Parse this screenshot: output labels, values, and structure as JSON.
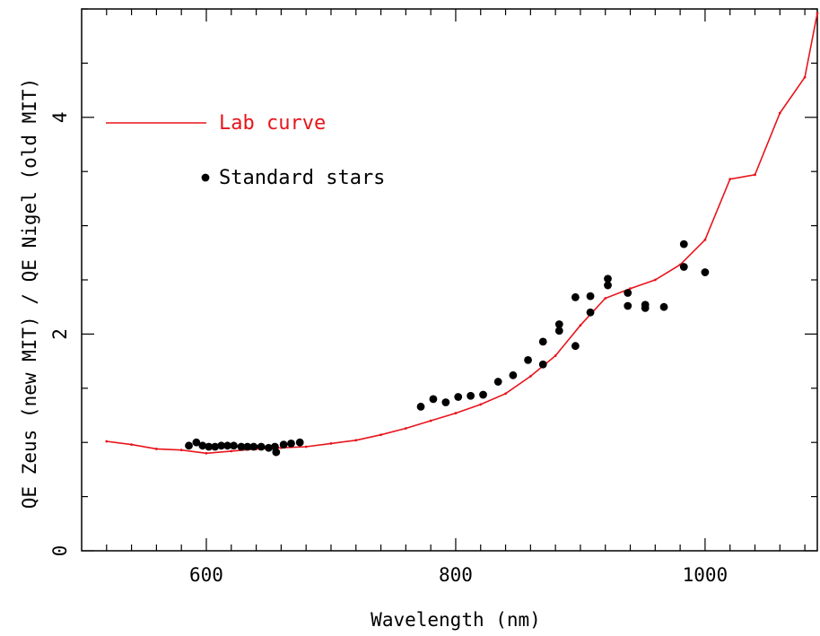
{
  "chart_data": {
    "type": "scatter",
    "title": "",
    "xlabel": "Wavelength (nm)",
    "ylabel": "QE Zeus (new MIT) / QE Nigel (old MIT)",
    "xlim": [
      500,
      1090
    ],
    "ylim": [
      0,
      5
    ],
    "x_ticks": [
      600,
      800,
      1000
    ],
    "y_ticks": [
      0,
      2,
      4
    ],
    "grid": false,
    "legend_position": "top-left",
    "colors": {
      "lab_curve": "#e8141b",
      "stars": "#000000",
      "axes": "#000000"
    },
    "series": [
      {
        "name": "Lab curve",
        "kind": "line",
        "x": [
          520,
          540,
          560,
          580,
          600,
          620,
          640,
          660,
          680,
          700,
          720,
          740,
          760,
          780,
          800,
          820,
          840,
          860,
          880,
          900,
          920,
          940,
          960,
          980,
          1000,
          1020,
          1040,
          1060,
          1080,
          1090
        ],
        "y": [
          1.01,
          0.98,
          0.94,
          0.93,
          0.9,
          0.92,
          0.94,
          0.95,
          0.96,
          0.99,
          1.02,
          1.07,
          1.13,
          1.2,
          1.27,
          1.35,
          1.45,
          1.61,
          1.8,
          2.08,
          2.33,
          2.42,
          2.5,
          2.64,
          2.87,
          3.43,
          3.47,
          4.04,
          4.37,
          4.96
        ]
      },
      {
        "name": "Standard stars",
        "kind": "points",
        "x": [
          586,
          592,
          597,
          602,
          607,
          612,
          617,
          622,
          628,
          633,
          638,
          644,
          650,
          655,
          656,
          662,
          668,
          675,
          772,
          782,
          792,
          802,
          812,
          822,
          834,
          846,
          858,
          870,
          870,
          883,
          883,
          896,
          896,
          908,
          908,
          922,
          922,
          938,
          938,
          952,
          952,
          967,
          983,
          983,
          1000
        ],
        "y": [
          0.97,
          1.0,
          0.97,
          0.96,
          0.96,
          0.97,
          0.97,
          0.97,
          0.96,
          0.96,
          0.96,
          0.96,
          0.95,
          0.96,
          0.91,
          0.98,
          0.99,
          1.0,
          1.33,
          1.4,
          1.37,
          1.42,
          1.43,
          1.44,
          1.56,
          1.62,
          1.76,
          1.93,
          1.72,
          2.09,
          2.03,
          2.34,
          1.89,
          2.35,
          2.2,
          2.51,
          2.45,
          2.38,
          2.26,
          2.27,
          2.24,
          2.25,
          2.83,
          2.62,
          2.57
        ]
      }
    ]
  }
}
